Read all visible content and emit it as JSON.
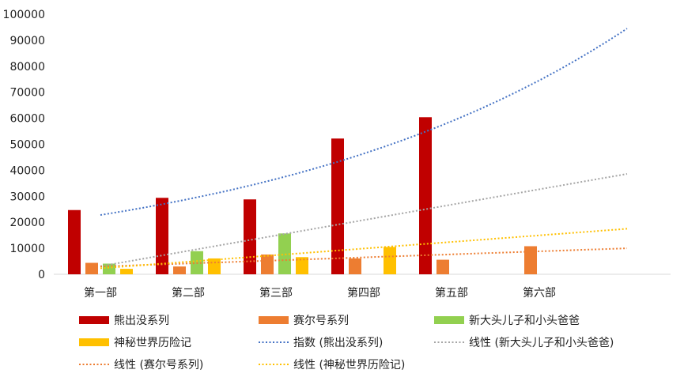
{
  "chart_data": {
    "type": "bar",
    "categories": [
      "第一部",
      "第二部",
      "第三部",
      "第四部",
      "第五部",
      "第六部"
    ],
    "ylim": [
      0,
      100000
    ],
    "yticks": [
      "0",
      "10000",
      "20000",
      "30000",
      "40000",
      "50000",
      "60000",
      "70000",
      "80000",
      "90000",
      "100000"
    ],
    "grid": false,
    "legend_position": "bottom",
    "series": [
      {
        "name": "熊出没系列",
        "color": "#c00000",
        "values": [
          24700,
          29400,
          28800,
          52200,
          60400,
          null
        ]
      },
      {
        "name": "赛尔号系列",
        "color": "#ed7d31",
        "values": [
          4400,
          3000,
          7600,
          6100,
          5600,
          10800
        ]
      },
      {
        "name": "新大头儿子和小头爸爸",
        "color": "#92d050",
        "values": [
          4100,
          8900,
          15700,
          null,
          null,
          null
        ]
      },
      {
        "name": "神秘世界历险记",
        "color": "#ffc000",
        "values": [
          2100,
          6100,
          6600,
          10500,
          null,
          null
        ]
      }
    ],
    "trendlines": [
      {
        "name": "指数 (熊出没系列)",
        "color": "#4472c4",
        "kind": "exponential",
        "series_index": 0,
        "start": 22800,
        "end": 94500
      },
      {
        "name": "线性 (新大头儿子和小头爸爸)",
        "color": "#a5a5a5",
        "kind": "linear",
        "series_index": 2,
        "start": 3100,
        "end": 38600
      },
      {
        "name": "线性 (赛尔号系列)",
        "color": "#ed7d31",
        "kind": "linear",
        "series_index": 1,
        "start": 3000,
        "end": 10000
      },
      {
        "name": "线性 (神秘世界历险记)",
        "color": "#ffc000",
        "kind": "linear",
        "series_index": 3,
        "start": 2300,
        "end": 17500
      }
    ]
  }
}
